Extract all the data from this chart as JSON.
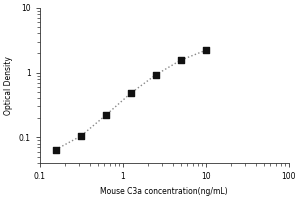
{
  "title": "",
  "xlabel": "Mouse C3a concentration(ng/mL)",
  "ylabel": "Optical Density",
  "x_data": [
    0.156,
    0.313,
    0.625,
    1.25,
    2.5,
    5.0,
    10.0
  ],
  "y_data": [
    0.065,
    0.105,
    0.22,
    0.48,
    0.92,
    1.55,
    2.2
  ],
  "xlim": [
    0.1,
    100
  ],
  "ylim": [
    0.04,
    10
  ],
  "line_color": "#888888",
  "marker_color": "#111111",
  "background_color": "#ffffff",
  "xticks": [
    0.1,
    1,
    10,
    100
  ],
  "xtick_labels": [
    "0.1",
    "1",
    "10",
    "100"
  ],
  "yticks": [
    0.1,
    1,
    10
  ],
  "ytick_labels": [
    "0.1",
    "1",
    "10"
  ],
  "fontsize_label": 5.5,
  "fontsize_tick": 5.5,
  "marker_size": 14,
  "linewidth": 1.0
}
